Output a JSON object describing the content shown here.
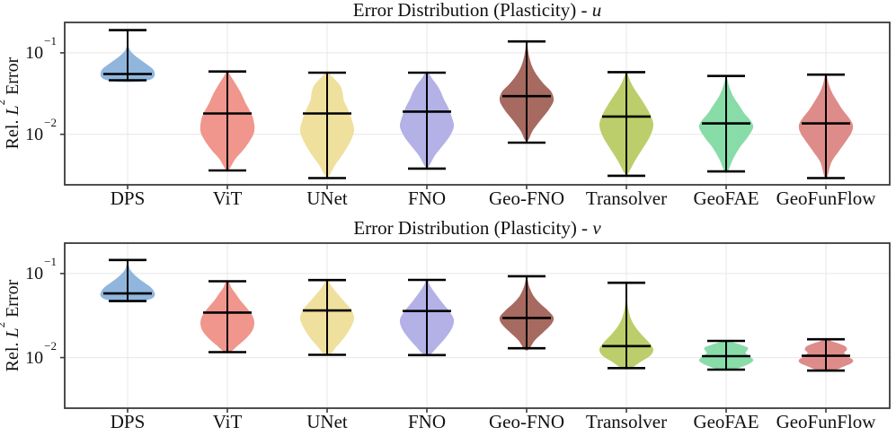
{
  "window": {
    "background": "#ffffff"
  },
  "style": {
    "grid_color": "#e7e7e7",
    "spine_color": "#3a3a3a",
    "whisker_color": "#000000",
    "text_color": "#111111"
  },
  "chart_data": [
    {
      "type": "violin",
      "id": "u",
      "title_prefix": "Error Distribution (Plasticity) - ",
      "title_variable": "u",
      "ylabel": {
        "pre": "Rel. ",
        "sym": "L",
        "sup": "2",
        "post": " Error"
      },
      "yscale": "log",
      "ylim": [
        0.0024,
        0.236
      ],
      "grid": true,
      "yticks": [
        {
          "base": "10",
          "exp": "−1",
          "value": 0.1
        },
        {
          "base": "10",
          "exp": "−2",
          "value": 0.01
        }
      ],
      "categories": [
        "DPS",
        "ViT",
        "UNet",
        "FNO",
        "Geo-FNO",
        "Transolver",
        "GeoFAE",
        "GeoFunFlow"
      ],
      "series": [
        {
          "label": "DPS",
          "color": "#90B6DD",
          "whisker_low": 0.046,
          "whisker_high": 0.19,
          "median": 0.055,
          "profile": [
            [
              0.044,
              0.25
            ],
            [
              0.046,
              0.75
            ],
            [
              0.05,
              0.97
            ],
            [
              0.057,
              1.0
            ],
            [
              0.064,
              0.92
            ],
            [
              0.072,
              0.72
            ],
            [
              0.081,
              0.5
            ],
            [
              0.092,
              0.28
            ],
            [
              0.103,
              0.13
            ],
            [
              0.115,
              0.05
            ],
            [
              0.128,
              0.01
            ]
          ]
        },
        {
          "label": "ViT",
          "color": "#F0968D",
          "whisker_low": 0.0036,
          "whisker_high": 0.059,
          "median": 0.018,
          "profile": [
            [
              0.0037,
              0.06
            ],
            [
              0.005,
              0.3
            ],
            [
              0.0065,
              0.6
            ],
            [
              0.0085,
              0.85
            ],
            [
              0.011,
              1.0
            ],
            [
              0.015,
              0.97
            ],
            [
              0.019,
              0.85
            ],
            [
              0.024,
              0.68
            ],
            [
              0.03,
              0.55
            ],
            [
              0.036,
              0.42
            ],
            [
              0.044,
              0.26
            ],
            [
              0.052,
              0.12
            ],
            [
              0.058,
              0.04
            ]
          ]
        },
        {
          "label": "UNet",
          "color": "#F0E09D",
          "whisker_low": 0.0029,
          "whisker_high": 0.057,
          "median": 0.018,
          "profile": [
            [
              0.003,
              0.05
            ],
            [
              0.0042,
              0.3
            ],
            [
              0.0058,
              0.6
            ],
            [
              0.008,
              0.85
            ],
            [
              0.011,
              1.0
            ],
            [
              0.015,
              0.92
            ],
            [
              0.02,
              0.78
            ],
            [
              0.026,
              0.62
            ],
            [
              0.032,
              0.58
            ],
            [
              0.039,
              0.5
            ],
            [
              0.046,
              0.32
            ],
            [
              0.053,
              0.14
            ],
            [
              0.057,
              0.05
            ]
          ]
        },
        {
          "label": "FNO",
          "color": "#B3B1E6",
          "whisker_low": 0.0038,
          "whisker_high": 0.057,
          "median": 0.019,
          "profile": [
            [
              0.004,
              0.06
            ],
            [
              0.0055,
              0.3
            ],
            [
              0.0072,
              0.58
            ],
            [
              0.0095,
              0.85
            ],
            [
              0.0125,
              1.0
            ],
            [
              0.016,
              0.93
            ],
            [
              0.021,
              0.8
            ],
            [
              0.027,
              0.63
            ],
            [
              0.033,
              0.52
            ],
            [
              0.04,
              0.38
            ],
            [
              0.048,
              0.2
            ],
            [
              0.056,
              0.06
            ]
          ]
        },
        {
          "label": "Geo-FNO",
          "color": "#A66A60",
          "whisker_low": 0.0079,
          "whisker_high": 0.138,
          "median": 0.0294,
          "profile": [
            [
              0.0085,
              0.06
            ],
            [
              0.011,
              0.22
            ],
            [
              0.015,
              0.52
            ],
            [
              0.02,
              0.82
            ],
            [
              0.026,
              1.0
            ],
            [
              0.033,
              0.92
            ],
            [
              0.041,
              0.65
            ],
            [
              0.052,
              0.4
            ],
            [
              0.066,
              0.22
            ],
            [
              0.085,
              0.11
            ],
            [
              0.108,
              0.05
            ],
            [
              0.135,
              0.02
            ]
          ]
        },
        {
          "label": "Transolver",
          "color": "#BCCE6B",
          "whisker_low": 0.0031,
          "whisker_high": 0.058,
          "median": 0.0165,
          "profile": [
            [
              0.0033,
              0.06
            ],
            [
              0.0048,
              0.33
            ],
            [
              0.0068,
              0.62
            ],
            [
              0.0095,
              0.88
            ],
            [
              0.013,
              1.0
            ],
            [
              0.017,
              0.9
            ],
            [
              0.022,
              0.72
            ],
            [
              0.028,
              0.52
            ],
            [
              0.035,
              0.32
            ],
            [
              0.043,
              0.17
            ],
            [
              0.052,
              0.07
            ],
            [
              0.058,
              0.03
            ]
          ]
        },
        {
          "label": "GeoFAE",
          "color": "#88DCA8",
          "whisker_low": 0.0035,
          "whisker_high": 0.052,
          "median": 0.0136,
          "profile": [
            [
              0.0035,
              0.06
            ],
            [
              0.005,
              0.26
            ],
            [
              0.007,
              0.52
            ],
            [
              0.009,
              0.78
            ],
            [
              0.012,
              1.0
            ],
            [
              0.0145,
              0.92
            ],
            [
              0.018,
              0.68
            ],
            [
              0.023,
              0.47
            ],
            [
              0.029,
              0.27
            ],
            [
              0.037,
              0.13
            ],
            [
              0.045,
              0.06
            ],
            [
              0.051,
              0.02
            ]
          ]
        },
        {
          "label": "GeoFunFlow",
          "color": "#DE8C8A",
          "whisker_low": 0.0029,
          "whisker_high": 0.054,
          "median": 0.0136,
          "profile": [
            [
              0.003,
              0.05
            ],
            [
              0.0045,
              0.2
            ],
            [
              0.006,
              0.45
            ],
            [
              0.008,
              0.72
            ],
            [
              0.0105,
              0.95
            ],
            [
              0.013,
              1.0
            ],
            [
              0.016,
              0.85
            ],
            [
              0.02,
              0.62
            ],
            [
              0.026,
              0.4
            ],
            [
              0.033,
              0.22
            ],
            [
              0.042,
              0.1
            ],
            [
              0.053,
              0.03
            ]
          ]
        }
      ]
    },
    {
      "type": "violin",
      "id": "v",
      "title_prefix": "Error Distribution (Plasticity) - ",
      "title_variable": "v",
      "ylabel": {
        "pre": "Rel. ",
        "sym": "L",
        "sup": "2",
        "post": " Error"
      },
      "yscale": "log",
      "ylim": [
        0.0025,
        0.23
      ],
      "grid": true,
      "yticks": [
        {
          "base": "10",
          "exp": "−1",
          "value": 0.1
        },
        {
          "base": "10",
          "exp": "−2",
          "value": 0.01
        }
      ],
      "categories": [
        "DPS",
        "ViT",
        "UNet",
        "FNO",
        "Geo-FNO",
        "Transolver",
        "GeoFAE",
        "GeoFunFlow"
      ],
      "series": [
        {
          "label": "DPS",
          "color": "#90B6DD",
          "whisker_low": 0.047,
          "whisker_high": 0.145,
          "median": 0.058,
          "profile": [
            [
              0.046,
              0.3
            ],
            [
              0.049,
              0.8
            ],
            [
              0.054,
              1.0
            ],
            [
              0.061,
              0.98
            ],
            [
              0.069,
              0.85
            ],
            [
              0.078,
              0.62
            ],
            [
              0.088,
              0.4
            ],
            [
              0.099,
              0.22
            ],
            [
              0.112,
              0.09
            ],
            [
              0.128,
              0.03
            ]
          ]
        },
        {
          "label": "ViT",
          "color": "#F0968D",
          "whisker_low": 0.0116,
          "whisker_high": 0.081,
          "median": 0.0343,
          "profile": [
            [
              0.0116,
              0.1
            ],
            [
              0.014,
              0.4
            ],
            [
              0.017,
              0.7
            ],
            [
              0.021,
              0.93
            ],
            [
              0.026,
              1.0
            ],
            [
              0.032,
              0.92
            ],
            [
              0.039,
              0.72
            ],
            [
              0.048,
              0.48
            ],
            [
              0.058,
              0.3
            ],
            [
              0.068,
              0.15
            ],
            [
              0.08,
              0.05
            ]
          ]
        },
        {
          "label": "UNet",
          "color": "#F0E09D",
          "whisker_low": 0.0108,
          "whisker_high": 0.0836,
          "median": 0.0363,
          "profile": [
            [
              0.0108,
              0.1
            ],
            [
              0.0135,
              0.35
            ],
            [
              0.017,
              0.62
            ],
            [
              0.022,
              0.85
            ],
            [
              0.029,
              1.0
            ],
            [
              0.037,
              0.9
            ],
            [
              0.046,
              0.65
            ],
            [
              0.056,
              0.42
            ],
            [
              0.067,
              0.22
            ],
            [
              0.076,
              0.1
            ],
            [
              0.085,
              0.04
            ]
          ]
        },
        {
          "label": "FNO",
          "color": "#B3B1E6",
          "whisker_low": 0.0107,
          "whisker_high": 0.084,
          "median": 0.0358,
          "profile": [
            [
              0.0107,
              0.1
            ],
            [
              0.0135,
              0.4
            ],
            [
              0.017,
              0.68
            ],
            [
              0.022,
              0.92
            ],
            [
              0.028,
              1.0
            ],
            [
              0.035,
              0.85
            ],
            [
              0.043,
              0.62
            ],
            [
              0.053,
              0.4
            ],
            [
              0.065,
              0.2
            ],
            [
              0.075,
              0.09
            ],
            [
              0.084,
              0.04
            ]
          ]
        },
        {
          "label": "Geo-FNO",
          "color": "#A66A60",
          "whisker_low": 0.0129,
          "whisker_high": 0.0929,
          "median": 0.0296,
          "profile": [
            [
              0.0125,
              0.08
            ],
            [
              0.016,
              0.3
            ],
            [
              0.02,
              0.62
            ],
            [
              0.025,
              0.92
            ],
            [
              0.03,
              1.0
            ],
            [
              0.036,
              0.8
            ],
            [
              0.044,
              0.5
            ],
            [
              0.054,
              0.26
            ],
            [
              0.068,
              0.11
            ],
            [
              0.08,
              0.05
            ],
            [
              0.092,
              0.02
            ]
          ]
        },
        {
          "label": "Transolver",
          "color": "#BCCE6B",
          "whisker_low": 0.0075,
          "whisker_high": 0.0777,
          "median": 0.0137,
          "profile": [
            [
              0.0074,
              0.15
            ],
            [
              0.009,
              0.55
            ],
            [
              0.0105,
              0.88
            ],
            [
              0.0125,
              1.0
            ],
            [
              0.015,
              0.85
            ],
            [
              0.019,
              0.55
            ],
            [
              0.024,
              0.3
            ],
            [
              0.03,
              0.15
            ],
            [
              0.038,
              0.07
            ],
            [
              0.048,
              0.03
            ],
            [
              0.06,
              0.015
            ]
          ]
        },
        {
          "label": "GeoFAE",
          "color": "#88DCA8",
          "whisker_low": 0.0072,
          "whisker_high": 0.0158,
          "median": 0.0104,
          "profile": [
            [
              0.0072,
              0.25
            ],
            [
              0.008,
              0.7
            ],
            [
              0.0088,
              0.95
            ],
            [
              0.0095,
              1.0
            ],
            [
              0.0105,
              0.85
            ],
            [
              0.0113,
              0.72
            ],
            [
              0.0122,
              0.78
            ],
            [
              0.0132,
              0.8
            ],
            [
              0.0142,
              0.55
            ],
            [
              0.0152,
              0.25
            ],
            [
              0.016,
              0.08
            ]
          ]
        },
        {
          "label": "GeoFunFlow",
          "color": "#DE8C8A",
          "whisker_low": 0.007,
          "whisker_high": 0.0165,
          "median": 0.0105,
          "profile": [
            [
              0.007,
              0.25
            ],
            [
              0.0078,
              0.65
            ],
            [
              0.0086,
              0.95
            ],
            [
              0.0094,
              1.0
            ],
            [
              0.0104,
              0.8
            ],
            [
              0.0114,
              0.68
            ],
            [
              0.0124,
              0.78
            ],
            [
              0.0136,
              0.72
            ],
            [
              0.0148,
              0.45
            ],
            [
              0.0158,
              0.18
            ],
            [
              0.0168,
              0.06
            ]
          ]
        }
      ]
    }
  ]
}
